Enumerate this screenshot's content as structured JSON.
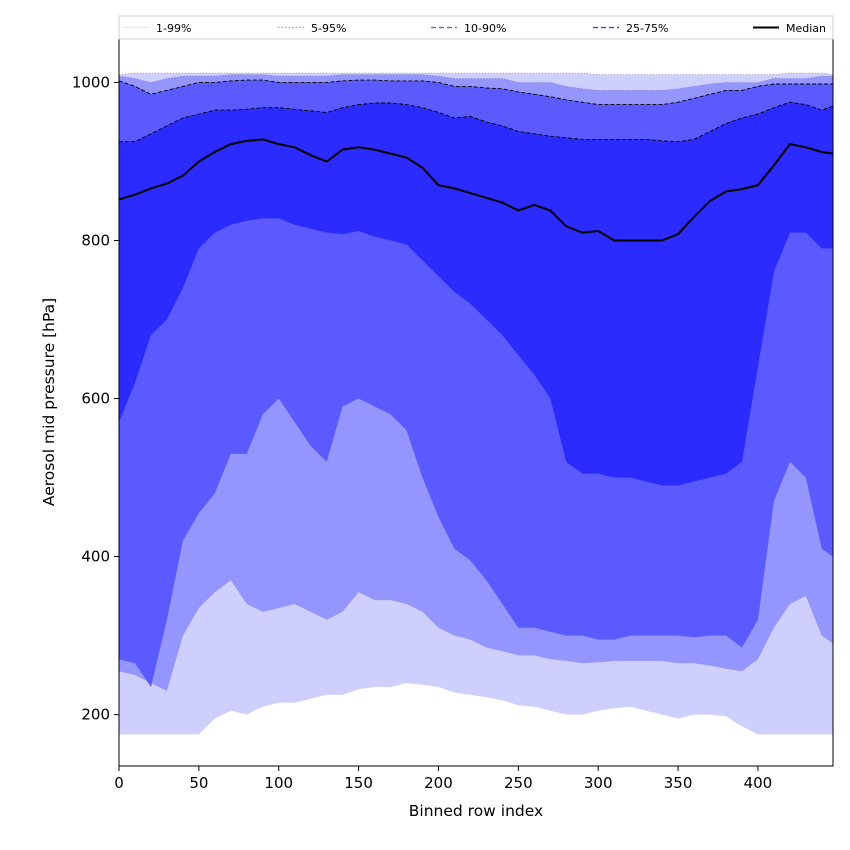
{
  "chart_data": {
    "type": "area",
    "title": "",
    "xlabel": "Binned row index",
    "ylabel": "Aerosol mid pressure [hPa]",
    "xlim": [
      0,
      447
    ],
    "ylim": [
      135,
      1055
    ],
    "x_ticks": [
      0,
      50,
      100,
      150,
      200,
      250,
      300,
      350,
      400
    ],
    "y_ticks": [
      200,
      400,
      600,
      800,
      1000
    ],
    "grid": false,
    "legend_placement": "top, single row",
    "colors": {
      "band_1_99": "#cfcffe",
      "band_5_95": "#9595fe",
      "band_10_90": "#5a5afe",
      "band_25_75": "#2b2bfe",
      "median": "#000000"
    },
    "legend": [
      {
        "label": "1-99%",
        "style": "dotted"
      },
      {
        "label": "5-95%",
        "style": "dotted"
      },
      {
        "label": "10-90%",
        "style": "dashed"
      },
      {
        "label": "25-75%",
        "style": "dashed"
      },
      {
        "label": "Median",
        "style": "solid"
      }
    ],
    "x": [
      0,
      10,
      20,
      30,
      40,
      50,
      60,
      70,
      80,
      90,
      100,
      110,
      120,
      130,
      140,
      150,
      160,
      170,
      180,
      190,
      200,
      210,
      220,
      230,
      240,
      250,
      260,
      270,
      280,
      290,
      300,
      310,
      320,
      330,
      340,
      350,
      360,
      370,
      380,
      390,
      400,
      410,
      420,
      430,
      440,
      447
    ],
    "series": [
      {
        "name": "1-99%",
        "kind": "band",
        "low": [
          175,
          175,
          175,
          175,
          175,
          175,
          195,
          205,
          200,
          210,
          215,
          215,
          220,
          225,
          225,
          232,
          235,
          235,
          240,
          238,
          235,
          228,
          225,
          222,
          218,
          212,
          210,
          205,
          200,
          200,
          205,
          208,
          210,
          205,
          200,
          195,
          200,
          200,
          198,
          185,
          175,
          175,
          175,
          175,
          175,
          175
        ],
        "high": [
          1010,
          1012,
          1012,
          1012,
          1012,
          1012,
          1012,
          1012,
          1012,
          1012,
          1012,
          1012,
          1012,
          1012,
          1012,
          1012,
          1012,
          1012,
          1012,
          1012,
          1012,
          1012,
          1012,
          1012,
          1012,
          1012,
          1012,
          1012,
          1012,
          1012,
          1010,
          1010,
          1010,
          1010,
          1010,
          1010,
          1010,
          1010,
          1010,
          1010,
          1010,
          1010,
          1012,
          1012,
          1012,
          1010
        ]
      },
      {
        "name": "5-95%",
        "kind": "band",
        "low": [
          255,
          250,
          240,
          230,
          300,
          335,
          355,
          370,
          340,
          330,
          335,
          340,
          330,
          320,
          330,
          355,
          345,
          345,
          340,
          330,
          310,
          300,
          295,
          285,
          280,
          275,
          275,
          270,
          268,
          265,
          266,
          268,
          268,
          268,
          268,
          265,
          265,
          262,
          258,
          255,
          270,
          310,
          340,
          350,
          300,
          290
        ],
        "high": [
          1008,
          1005,
          1000,
          1005,
          1008,
          1008,
          1008,
          1010,
          1010,
          1010,
          1008,
          1008,
          1008,
          1008,
          1010,
          1010,
          1010,
          1010,
          1010,
          1010,
          1008,
          1005,
          1005,
          1005,
          1005,
          1000,
          1000,
          1000,
          995,
          992,
          990,
          990,
          990,
          990,
          990,
          992,
          995,
          998,
          1000,
          1000,
          1000,
          1005,
          1005,
          1005,
          1008,
          1008
        ]
      },
      {
        "name": "10-90%",
        "kind": "band",
        "low": [
          270,
          265,
          235,
          320,
          420,
          455,
          480,
          530,
          530,
          580,
          600,
          570,
          540,
          520,
          590,
          600,
          590,
          580,
          560,
          500,
          450,
          410,
          395,
          370,
          340,
          310,
          310,
          305,
          300,
          300,
          295,
          295,
          300,
          300,
          300,
          300,
          298,
          300,
          300,
          285,
          320,
          470,
          520,
          500,
          410,
          400
        ],
        "high": [
          1002,
          995,
          985,
          990,
          995,
          1000,
          1000,
          1002,
          1003,
          1003,
          1000,
          1000,
          1000,
          1000,
          1002,
          1003,
          1003,
          1002,
          1002,
          1002,
          1000,
          995,
          995,
          993,
          992,
          988,
          985,
          982,
          978,
          975,
          972,
          972,
          972,
          972,
          972,
          975,
          980,
          985,
          990,
          990,
          995,
          998,
          998,
          998,
          998,
          998
        ]
      },
      {
        "name": "25-75%",
        "kind": "band",
        "low": [
          570,
          620,
          680,
          700,
          740,
          790,
          810,
          820,
          825,
          828,
          828,
          820,
          815,
          810,
          808,
          812,
          805,
          800,
          795,
          775,
          755,
          735,
          720,
          700,
          680,
          655,
          630,
          600,
          520,
          505,
          505,
          500,
          500,
          495,
          490,
          490,
          495,
          500,
          505,
          520,
          640,
          760,
          810,
          810,
          790,
          790
        ],
        "high": [
          925,
          925,
          935,
          945,
          955,
          960,
          965,
          965,
          966,
          968,
          968,
          966,
          964,
          962,
          968,
          972,
          974,
          974,
          972,
          968,
          962,
          955,
          957,
          950,
          945,
          938,
          935,
          932,
          930,
          928,
          928,
          928,
          928,
          928,
          926,
          925,
          928,
          938,
          948,
          955,
          960,
          968,
          975,
          972,
          965,
          970
        ]
      },
      {
        "name": "Median",
        "kind": "line",
        "values": [
          852,
          858,
          866,
          872,
          882,
          900,
          912,
          922,
          926,
          928,
          922,
          918,
          908,
          900,
          915,
          918,
          915,
          910,
          905,
          892,
          870,
          866,
          860,
          854,
          848,
          838,
          845,
          838,
          818,
          810,
          812,
          800,
          800,
          800,
          800,
          808,
          830,
          850,
          862,
          865,
          870,
          895,
          922,
          918,
          912,
          910
        ]
      }
    ]
  }
}
